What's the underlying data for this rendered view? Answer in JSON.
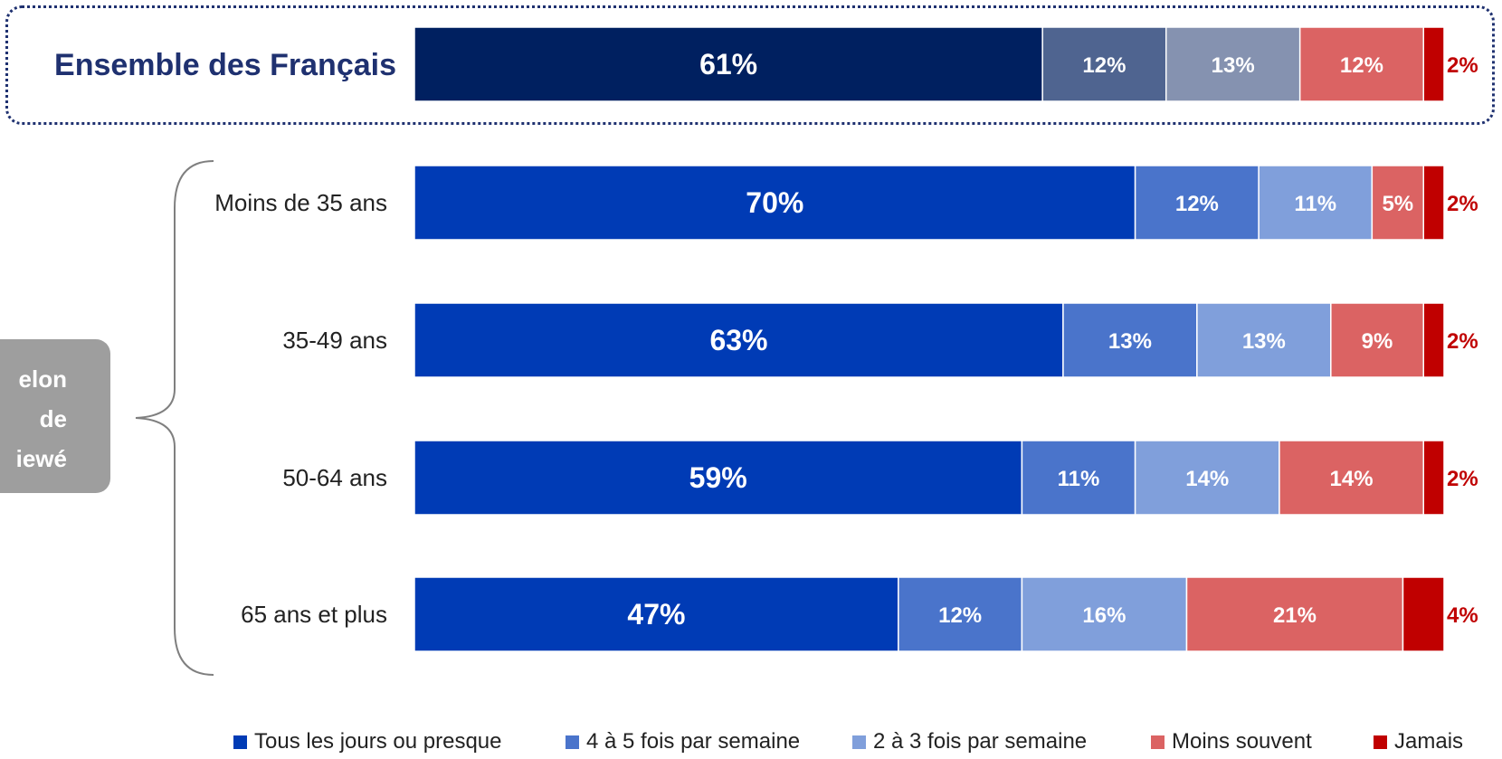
{
  "chart_data": {
    "type": "bar",
    "orientation": "horizontal",
    "stacked": true,
    "unit": "%",
    "categories": [
      "Ensemble des Français",
      "Moins de 35 ans",
      "35-49 ans",
      "50-64 ans",
      "65 ans et plus"
    ],
    "category_labels": [
      {
        "text": "Ensemble des Français",
        "emphasis": true
      },
      {
        "text": "Moins de 35 ans",
        "emphasis": false
      },
      {
        "text": "35-49 ans",
        "emphasis": false
      },
      {
        "text": "50-64 ans",
        "emphasis": false
      },
      {
        "text": "65 ans et plus",
        "emphasis": false
      }
    ],
    "series": [
      {
        "name": "Tous les jours ou presque",
        "values": [
          61,
          70,
          63,
          59,
          47
        ],
        "colors": [
          "#002060",
          "#003bb5",
          "#003bb5",
          "#003bb5",
          "#003bb5"
        ]
      },
      {
        "name": "4 à 5 fois par semaine",
        "values": [
          12,
          12,
          13,
          11,
          12
        ],
        "colors": [
          "#4f6490",
          "#4a74cb",
          "#4a74cb",
          "#4a74cb",
          "#4a74cb"
        ]
      },
      {
        "name": "2 à 3 fois par semaine",
        "values": [
          13,
          11,
          13,
          14,
          16
        ],
        "colors": [
          "#8592b0",
          "#809fdb",
          "#809fdb",
          "#809fdb",
          "#809fdb"
        ]
      },
      {
        "name": "Moins souvent",
        "values": [
          12,
          5,
          9,
          14,
          21
        ],
        "colors": [
          "#db6363",
          "#db6363",
          "#db6363",
          "#db6363",
          "#db6363"
        ]
      },
      {
        "name": "Jamais",
        "values": [
          2,
          2,
          2,
          2,
          4
        ],
        "colors": [
          "#c00000",
          "#c00000",
          "#c00000",
          "#c00000",
          "#c00000"
        ]
      }
    ],
    "legend_colors": [
      "#003bb5",
      "#4a74cb",
      "#809fdb",
      "#db6363",
      "#c00000"
    ],
    "legend_position": "bottom",
    "group_label": [
      "elon",
      "de",
      "iewé"
    ],
    "grid": false
  }
}
